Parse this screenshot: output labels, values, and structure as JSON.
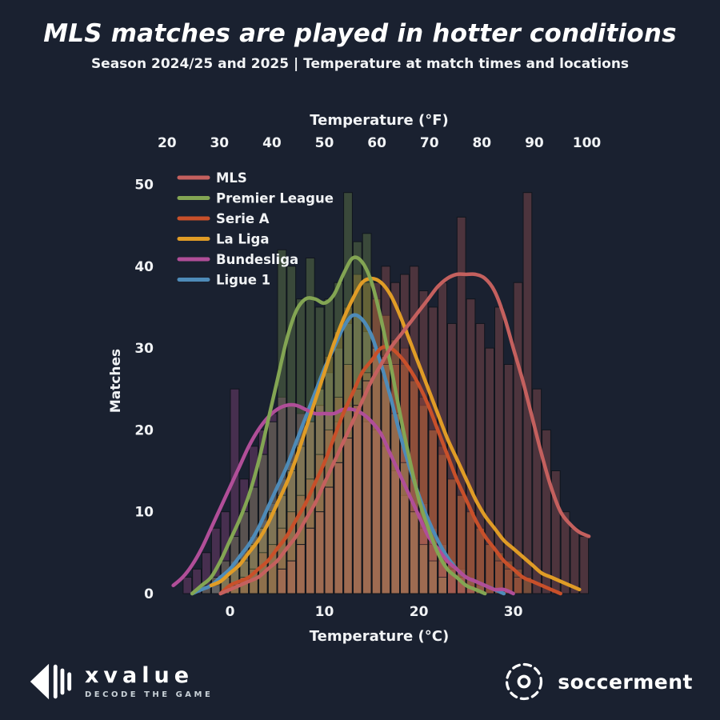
{
  "page": {
    "title": "MLS matches are played in hotter conditions",
    "subtitle": "Season 2024/25 and 2025 | Temperature at match times and locations"
  },
  "footer": {
    "xvalue": {
      "name": "xvalue",
      "tagline": "DECODE THE GAME"
    },
    "soccerment": {
      "name": "soccerment"
    }
  },
  "colors": {
    "background": "#1a2130",
    "text": "#f1f3f5"
  },
  "chart_data": {
    "type": "histogram+kde",
    "title": "MLS matches are played in hotter conditions",
    "subtitle": "Season 2024/25 and 2025 | Temperature at match times and locations",
    "x_axis_top": {
      "label": "Temperature (°F)",
      "ticks": [
        20,
        30,
        40,
        50,
        60,
        70,
        80,
        90,
        100
      ]
    },
    "x_axis_bottom": {
      "label": "Temperature (°C)",
      "ticks": [
        0,
        10,
        20,
        30
      ]
    },
    "y_axis": {
      "label": "Matches",
      "ticks": [
        0,
        10,
        20,
        30,
        40,
        50
      ],
      "domain": [
        0,
        52
      ]
    },
    "x_domain_c": [
      -6.9,
      38.5
    ],
    "bin_width_c": 1,
    "legend_position": "upper-left",
    "grid": false,
    "series": [
      {
        "name": "MLS",
        "color": "#c4605e",
        "hist_start": 5,
        "hist": [
          3,
          4,
          6,
          8,
          10,
          13,
          16,
          19,
          23,
          26,
          38,
          40,
          38,
          39,
          40,
          37,
          35,
          38,
          33,
          46,
          36,
          33,
          30,
          35,
          28,
          38,
          49,
          25,
          20,
          15,
          10,
          8,
          7
        ],
        "curve": [
          [
            -1,
            0
          ],
          [
            0,
            0.5
          ],
          [
            1,
            1
          ],
          [
            2,
            1.5
          ],
          [
            3,
            2
          ],
          [
            4,
            3
          ],
          [
            5,
            4
          ],
          [
            6,
            5.5
          ],
          [
            7,
            7
          ],
          [
            8,
            9
          ],
          [
            9,
            11
          ],
          [
            10,
            13.5
          ],
          [
            11,
            16
          ],
          [
            12,
            18.5
          ],
          [
            13,
            21
          ],
          [
            14,
            23.5
          ],
          [
            15,
            26
          ],
          [
            16,
            28
          ],
          [
            17,
            30
          ],
          [
            18,
            31.5
          ],
          [
            19,
            33
          ],
          [
            20,
            34.5
          ],
          [
            21,
            36
          ],
          [
            22,
            37.5
          ],
          [
            23,
            38.5
          ],
          [
            24,
            39
          ],
          [
            25,
            39
          ],
          [
            26,
            39
          ],
          [
            27,
            38.5
          ],
          [
            28,
            37
          ],
          [
            29,
            34
          ],
          [
            30,
            30
          ],
          [
            31,
            26
          ],
          [
            32,
            21.5
          ],
          [
            33,
            17
          ],
          [
            34,
            13
          ],
          [
            35,
            10
          ],
          [
            36,
            8.5
          ],
          [
            37,
            7.5
          ],
          [
            38,
            7
          ]
        ]
      },
      {
        "name": "Premier League",
        "color": "#83a553",
        "hist_start": -3,
        "hist": [
          1,
          2,
          4,
          7,
          10,
          13,
          17,
          21,
          42,
          40,
          36,
          41,
          35,
          36,
          38,
          49,
          43,
          44,
          30,
          28,
          22,
          16,
          10,
          6,
          4,
          2
        ],
        "curve": [
          [
            -4,
            0
          ],
          [
            -3,
            1
          ],
          [
            -2,
            2
          ],
          [
            -1,
            4
          ],
          [
            0,
            6.5
          ],
          [
            1,
            9
          ],
          [
            2,
            12
          ],
          [
            3,
            16
          ],
          [
            4,
            21
          ],
          [
            5,
            26
          ],
          [
            6,
            31
          ],
          [
            7,
            34.5
          ],
          [
            8,
            36
          ],
          [
            9,
            36
          ],
          [
            10,
            35.5
          ],
          [
            11,
            36.5
          ],
          [
            12,
            39
          ],
          [
            13,
            41
          ],
          [
            14,
            40.5
          ],
          [
            15,
            38
          ],
          [
            16,
            33.5
          ],
          [
            17,
            28
          ],
          [
            18,
            22
          ],
          [
            19,
            16.5
          ],
          [
            20,
            11.5
          ],
          [
            21,
            8
          ],
          [
            22,
            5
          ],
          [
            23,
            3
          ],
          [
            24,
            2
          ],
          [
            25,
            1
          ],
          [
            26,
            0.5
          ],
          [
            27,
            0
          ]
        ]
      },
      {
        "name": "Serie A",
        "color": "#c8502a",
        "hist_start": 0,
        "hist": [
          1,
          2,
          3,
          5,
          6,
          8,
          10,
          12,
          14,
          17,
          20,
          24,
          28,
          25,
          27,
          30,
          29,
          28,
          30,
          26,
          24,
          20,
          18,
          14,
          12,
          10,
          8,
          6,
          4,
          3,
          2
        ],
        "curve": [
          [
            -1,
            0
          ],
          [
            0,
            1
          ],
          [
            1,
            1.5
          ],
          [
            2,
            2
          ],
          [
            3,
            3
          ],
          [
            4,
            4
          ],
          [
            5,
            5.5
          ],
          [
            6,
            7
          ],
          [
            7,
            9
          ],
          [
            8,
            11
          ],
          [
            9,
            13.5
          ],
          [
            10,
            16
          ],
          [
            11,
            19
          ],
          [
            12,
            22
          ],
          [
            13,
            24.5
          ],
          [
            14,
            27
          ],
          [
            15,
            28.5
          ],
          [
            16,
            30
          ],
          [
            17,
            30
          ],
          [
            18,
            29
          ],
          [
            19,
            27.5
          ],
          [
            20,
            25.5
          ],
          [
            21,
            23
          ],
          [
            22,
            20
          ],
          [
            23,
            17
          ],
          [
            24,
            14
          ],
          [
            25,
            11.5
          ],
          [
            26,
            9
          ],
          [
            27,
            7
          ],
          [
            28,
            5.5
          ],
          [
            29,
            4
          ],
          [
            30,
            3
          ],
          [
            31,
            2
          ],
          [
            32,
            1.5
          ],
          [
            33,
            1
          ],
          [
            34,
            0.5
          ],
          [
            35,
            0
          ]
        ]
      },
      {
        "name": "La Liga",
        "color": "#e09c26",
        "hist_start": -1,
        "hist": [
          2,
          3,
          4,
          6,
          8,
          10,
          12,
          15,
          18,
          21,
          25,
          29,
          32,
          35,
          39,
          38,
          36,
          34,
          31,
          28,
          26,
          23,
          20,
          17,
          14,
          12,
          10,
          8,
          6,
          5,
          4,
          3,
          2
        ],
        "curve": [
          [
            -2,
            1
          ],
          [
            -1,
            1.5
          ],
          [
            0,
            2.5
          ],
          [
            1,
            3.5
          ],
          [
            2,
            5
          ],
          [
            3,
            6.5
          ],
          [
            4,
            8.5
          ],
          [
            5,
            11
          ],
          [
            6,
            13.5
          ],
          [
            7,
            16.5
          ],
          [
            8,
            20
          ],
          [
            9,
            23.5
          ],
          [
            10,
            27
          ],
          [
            11,
            30.5
          ],
          [
            12,
            33.5
          ],
          [
            13,
            36
          ],
          [
            14,
            38
          ],
          [
            15,
            38.5
          ],
          [
            16,
            38
          ],
          [
            17,
            36.5
          ],
          [
            18,
            34
          ],
          [
            19,
            31
          ],
          [
            20,
            28
          ],
          [
            21,
            25
          ],
          [
            22,
            22
          ],
          [
            23,
            19
          ],
          [
            24,
            16.5
          ],
          [
            25,
            14
          ],
          [
            26,
            11.5
          ],
          [
            27,
            9.5
          ],
          [
            28,
            8
          ],
          [
            29,
            6.5
          ],
          [
            30,
            5.5
          ],
          [
            31,
            4.5
          ],
          [
            32,
            3.5
          ],
          [
            33,
            2.5
          ],
          [
            34,
            2
          ],
          [
            35,
            1.5
          ],
          [
            36,
            1
          ],
          [
            37,
            0.5
          ]
        ]
      },
      {
        "name": "Bundesliga",
        "color": "#b04e98",
        "hist_start": -5,
        "hist": [
          2,
          3,
          5,
          8,
          10,
          25,
          14,
          18,
          20,
          22,
          24,
          23,
          22,
          21,
          23,
          22,
          21,
          23,
          22,
          21,
          20,
          18,
          15,
          12,
          10,
          8,
          6,
          4,
          3,
          2,
          1
        ],
        "curve": [
          [
            -6,
            1
          ],
          [
            -5,
            2
          ],
          [
            -4,
            3.5
          ],
          [
            -3,
            5.5
          ],
          [
            -2,
            8
          ],
          [
            -1,
            10.5
          ],
          [
            0,
            13
          ],
          [
            1,
            15.5
          ],
          [
            2,
            18
          ],
          [
            3,
            20
          ],
          [
            4,
            21.5
          ],
          [
            5,
            22.5
          ],
          [
            6,
            23
          ],
          [
            7,
            23
          ],
          [
            8,
            22.5
          ],
          [
            9,
            22
          ],
          [
            10,
            22
          ],
          [
            11,
            22
          ],
          [
            12,
            22.5
          ],
          [
            13,
            22.5
          ],
          [
            14,
            22
          ],
          [
            15,
            21
          ],
          [
            16,
            19.5
          ],
          [
            17,
            17
          ],
          [
            18,
            14.5
          ],
          [
            19,
            12
          ],
          [
            20,
            9.5
          ],
          [
            21,
            7
          ],
          [
            22,
            5.5
          ],
          [
            23,
            4
          ],
          [
            24,
            3
          ],
          [
            25,
            2
          ],
          [
            26,
            1.5
          ],
          [
            27,
            1
          ],
          [
            28,
            0.5
          ],
          [
            29,
            0.5
          ],
          [
            30,
            0
          ]
        ]
      },
      {
        "name": "Ligue 1",
        "color": "#4e8bb8",
        "hist_start": -2,
        "hist": [
          1,
          2,
          4,
          5,
          7,
          9,
          11,
          14,
          16,
          19,
          22,
          25,
          27,
          30,
          33,
          34,
          32,
          30,
          26,
          22,
          18,
          14,
          11,
          8,
          6,
          4,
          3,
          2,
          1
        ],
        "curve": [
          [
            -4,
            0
          ],
          [
            -3,
            0.5
          ],
          [
            -2,
            1
          ],
          [
            -1,
            2
          ],
          [
            0,
            3
          ],
          [
            1,
            4.5
          ],
          [
            2,
            6
          ],
          [
            3,
            8
          ],
          [
            4,
            10.5
          ],
          [
            5,
            13
          ],
          [
            6,
            15.5
          ],
          [
            7,
            18.5
          ],
          [
            8,
            21.5
          ],
          [
            9,
            24.5
          ],
          [
            10,
            27.5
          ],
          [
            11,
            30
          ],
          [
            12,
            32.5
          ],
          [
            13,
            34
          ],
          [
            14,
            33.5
          ],
          [
            15,
            31.5
          ],
          [
            16,
            28
          ],
          [
            17,
            24
          ],
          [
            18,
            19.5
          ],
          [
            19,
            15.5
          ],
          [
            20,
            12
          ],
          [
            21,
            9
          ],
          [
            22,
            6.5
          ],
          [
            23,
            4.5
          ],
          [
            24,
            3
          ],
          [
            25,
            2
          ],
          [
            26,
            1.5
          ],
          [
            27,
            1
          ],
          [
            28,
            0.5
          ],
          [
            29,
            0
          ]
        ]
      }
    ]
  }
}
